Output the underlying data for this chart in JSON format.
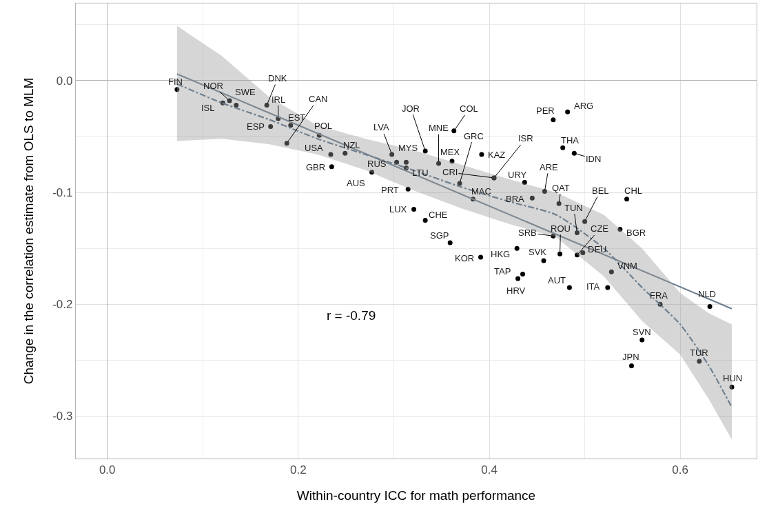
{
  "chart_data": {
    "type": "scatter",
    "xlabel": "Within-country ICC for math performance",
    "ylabel": "Change in the correlation estimate from OLS to MLM",
    "xlim": [
      -0.033,
      0.68
    ],
    "ylim": [
      -0.338,
      0.069
    ],
    "xticks": [
      {
        "value": 0,
        "label": "0.0"
      },
      {
        "value": 0.2,
        "label": "0.2"
      },
      {
        "value": 0.4,
        "label": "0.4"
      },
      {
        "value": 0.6,
        "label": "0.6"
      }
    ],
    "yticks": [
      {
        "value": 0,
        "label": "0.0"
      },
      {
        "value": -0.1,
        "label": "-0.1"
      },
      {
        "value": -0.2,
        "label": "-0.2"
      },
      {
        "value": -0.3,
        "label": "-0.3"
      }
    ],
    "grid": true,
    "marker": "circle",
    "annotations": [
      "r = -0.79"
    ],
    "series": [
      {
        "color": "#000000",
        "x": [
          0.073,
          0.121,
          0.128,
          0.135,
          0.167,
          0.179,
          0.192,
          0.171,
          0.188,
          0.222,
          0.234,
          0.249,
          0.235,
          0.277,
          0.303,
          0.298,
          0.313,
          0.313,
          0.315,
          0.321,
          0.333,
          0.359,
          0.333,
          0.347,
          0.361,
          0.363,
          0.369,
          0.392,
          0.405,
          0.405,
          0.383,
          0.437,
          0.467,
          0.482,
          0.477,
          0.489,
          0.458,
          0.445,
          0.473,
          0.5,
          0.492,
          0.467,
          0.474,
          0.492,
          0.498,
          0.429,
          0.457,
          0.391,
          0.435,
          0.43,
          0.484,
          0.524,
          0.528,
          0.544,
          0.537,
          0.579,
          0.631,
          0.56,
          0.549,
          0.62,
          0.654
        ],
        "values": [
          -0.008,
          -0.02,
          -0.018,
          -0.022,
          -0.022,
          -0.034,
          -0.04,
          -0.041,
          -0.056,
          -0.049,
          -0.066,
          -0.065,
          -0.077,
          -0.082,
          -0.073,
          -0.066,
          -0.073,
          -0.078,
          -0.097,
          -0.115,
          -0.125,
          -0.145,
          -0.063,
          -0.074,
          -0.072,
          -0.045,
          -0.092,
          -0.066,
          -0.087,
          -0.087,
          -0.106,
          -0.091,
          -0.035,
          -0.028,
          -0.06,
          -0.065,
          -0.099,
          -0.105,
          -0.11,
          -0.126,
          -0.136,
          -0.139,
          -0.155,
          -0.156,
          -0.154,
          -0.15,
          -0.161,
          -0.158,
          -0.173,
          -0.177,
          -0.185,
          -0.185,
          -0.171,
          -0.106,
          -0.133,
          -0.2,
          -0.202,
          -0.232,
          -0.255,
          -0.251,
          -0.274
        ],
        "value_labels": [
          "FIN",
          "ISL",
          "NOR",
          "SWE",
          "DNK",
          "IRL",
          "EST",
          "ESP",
          "CAN",
          "POL",
          "USA",
          "NZL",
          "GBR",
          "AUS",
          "RUS",
          "LVA",
          "MYS",
          "LTU",
          "PRT",
          "LUX",
          "CHE",
          "SGP",
          "JOR",
          "MNE",
          "MEX",
          "COL",
          "GRC",
          "KAZ",
          "ISR",
          "CRI",
          "MAC",
          "URY",
          "PER",
          "ARG",
          "THA",
          "IDN",
          "ARE",
          "BRA",
          "QAT",
          "BEL",
          "TUN",
          "SRB",
          "ROU",
          "CZE",
          "DEU",
          "HKG",
          "SVK",
          "KOR",
          "TAP",
          "HRV",
          "AUT",
          "ITA",
          "VNM",
          "CHL",
          "BGR",
          "FRA",
          "NLD",
          "SVN",
          "JPN",
          "TUR",
          "HUN"
        ]
      },
      {
        "type": "line",
        "color": "#708090",
        "line_style": "solid",
        "marker": "none",
        "x": [
          0.073,
          0.654
        ],
        "values": [
          0.006,
          -0.204
        ]
      },
      {
        "type": "line",
        "color": "#708090",
        "line_style": "dashed",
        "marker": "none",
        "x": [
          0.073,
          0.12,
          0.17,
          0.22,
          0.27,
          0.32,
          0.37,
          0.42,
          0.47,
          0.52,
          0.56,
          0.6,
          0.63,
          0.654
        ],
        "values": [
          -0.003,
          -0.02,
          -0.035,
          -0.052,
          -0.066,
          -0.08,
          -0.095,
          -0.108,
          -0.12,
          -0.15,
          -0.185,
          -0.218,
          -0.255,
          -0.292
        ],
        "lower": [
          -0.054,
          -0.052,
          -0.057,
          -0.066,
          -0.08,
          -0.098,
          -0.114,
          -0.128,
          -0.14,
          -0.175,
          -0.215,
          -0.245,
          -0.285,
          -0.321
        ],
        "upper": [
          0.049,
          0.022,
          -0.015,
          -0.04,
          -0.052,
          -0.062,
          -0.075,
          -0.088,
          -0.1,
          -0.12,
          -0.15,
          -0.19,
          -0.208,
          -0.218
        ]
      }
    ]
  }
}
